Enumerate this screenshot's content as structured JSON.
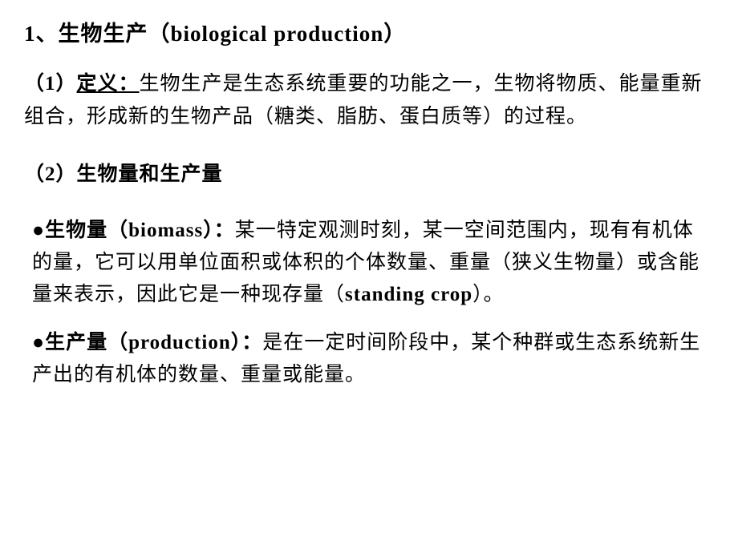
{
  "title": "1、生物生产（biological production）",
  "section1": {
    "label": "（1）",
    "definitionLabel": "定义：",
    "text": "生物生产是生态系统重要的功能之一，生物将物质、能量重新组合，形成新的生物产品（糖类、脂肪、蛋白质等）的过程。"
  },
  "section2": {
    "header": "（2）生物量和生产量"
  },
  "bullet1": {
    "marker": "●",
    "term": "生物量（biomass）：",
    "text": "某一特定观测时刻，某一空间范围内，现有有机体的量，它可以用单位面积或体积的个体数量、重量（狭义生物量）或含能量来表示，因此它是一种现存量（",
    "term2": "standing crop",
    "text2": "）。"
  },
  "bullet2": {
    "marker": "●",
    "term": "生产量（production）：",
    "text": "是在一定时间阶段中，某个种群或生态系统新生产出的有机体的数量、重量或能量。"
  },
  "styling": {
    "background_color": "#ffffff",
    "text_color": "#000000",
    "title_fontsize": 27,
    "body_fontsize": 25,
    "line_height": 1.65,
    "font_family": "SimSun"
  }
}
